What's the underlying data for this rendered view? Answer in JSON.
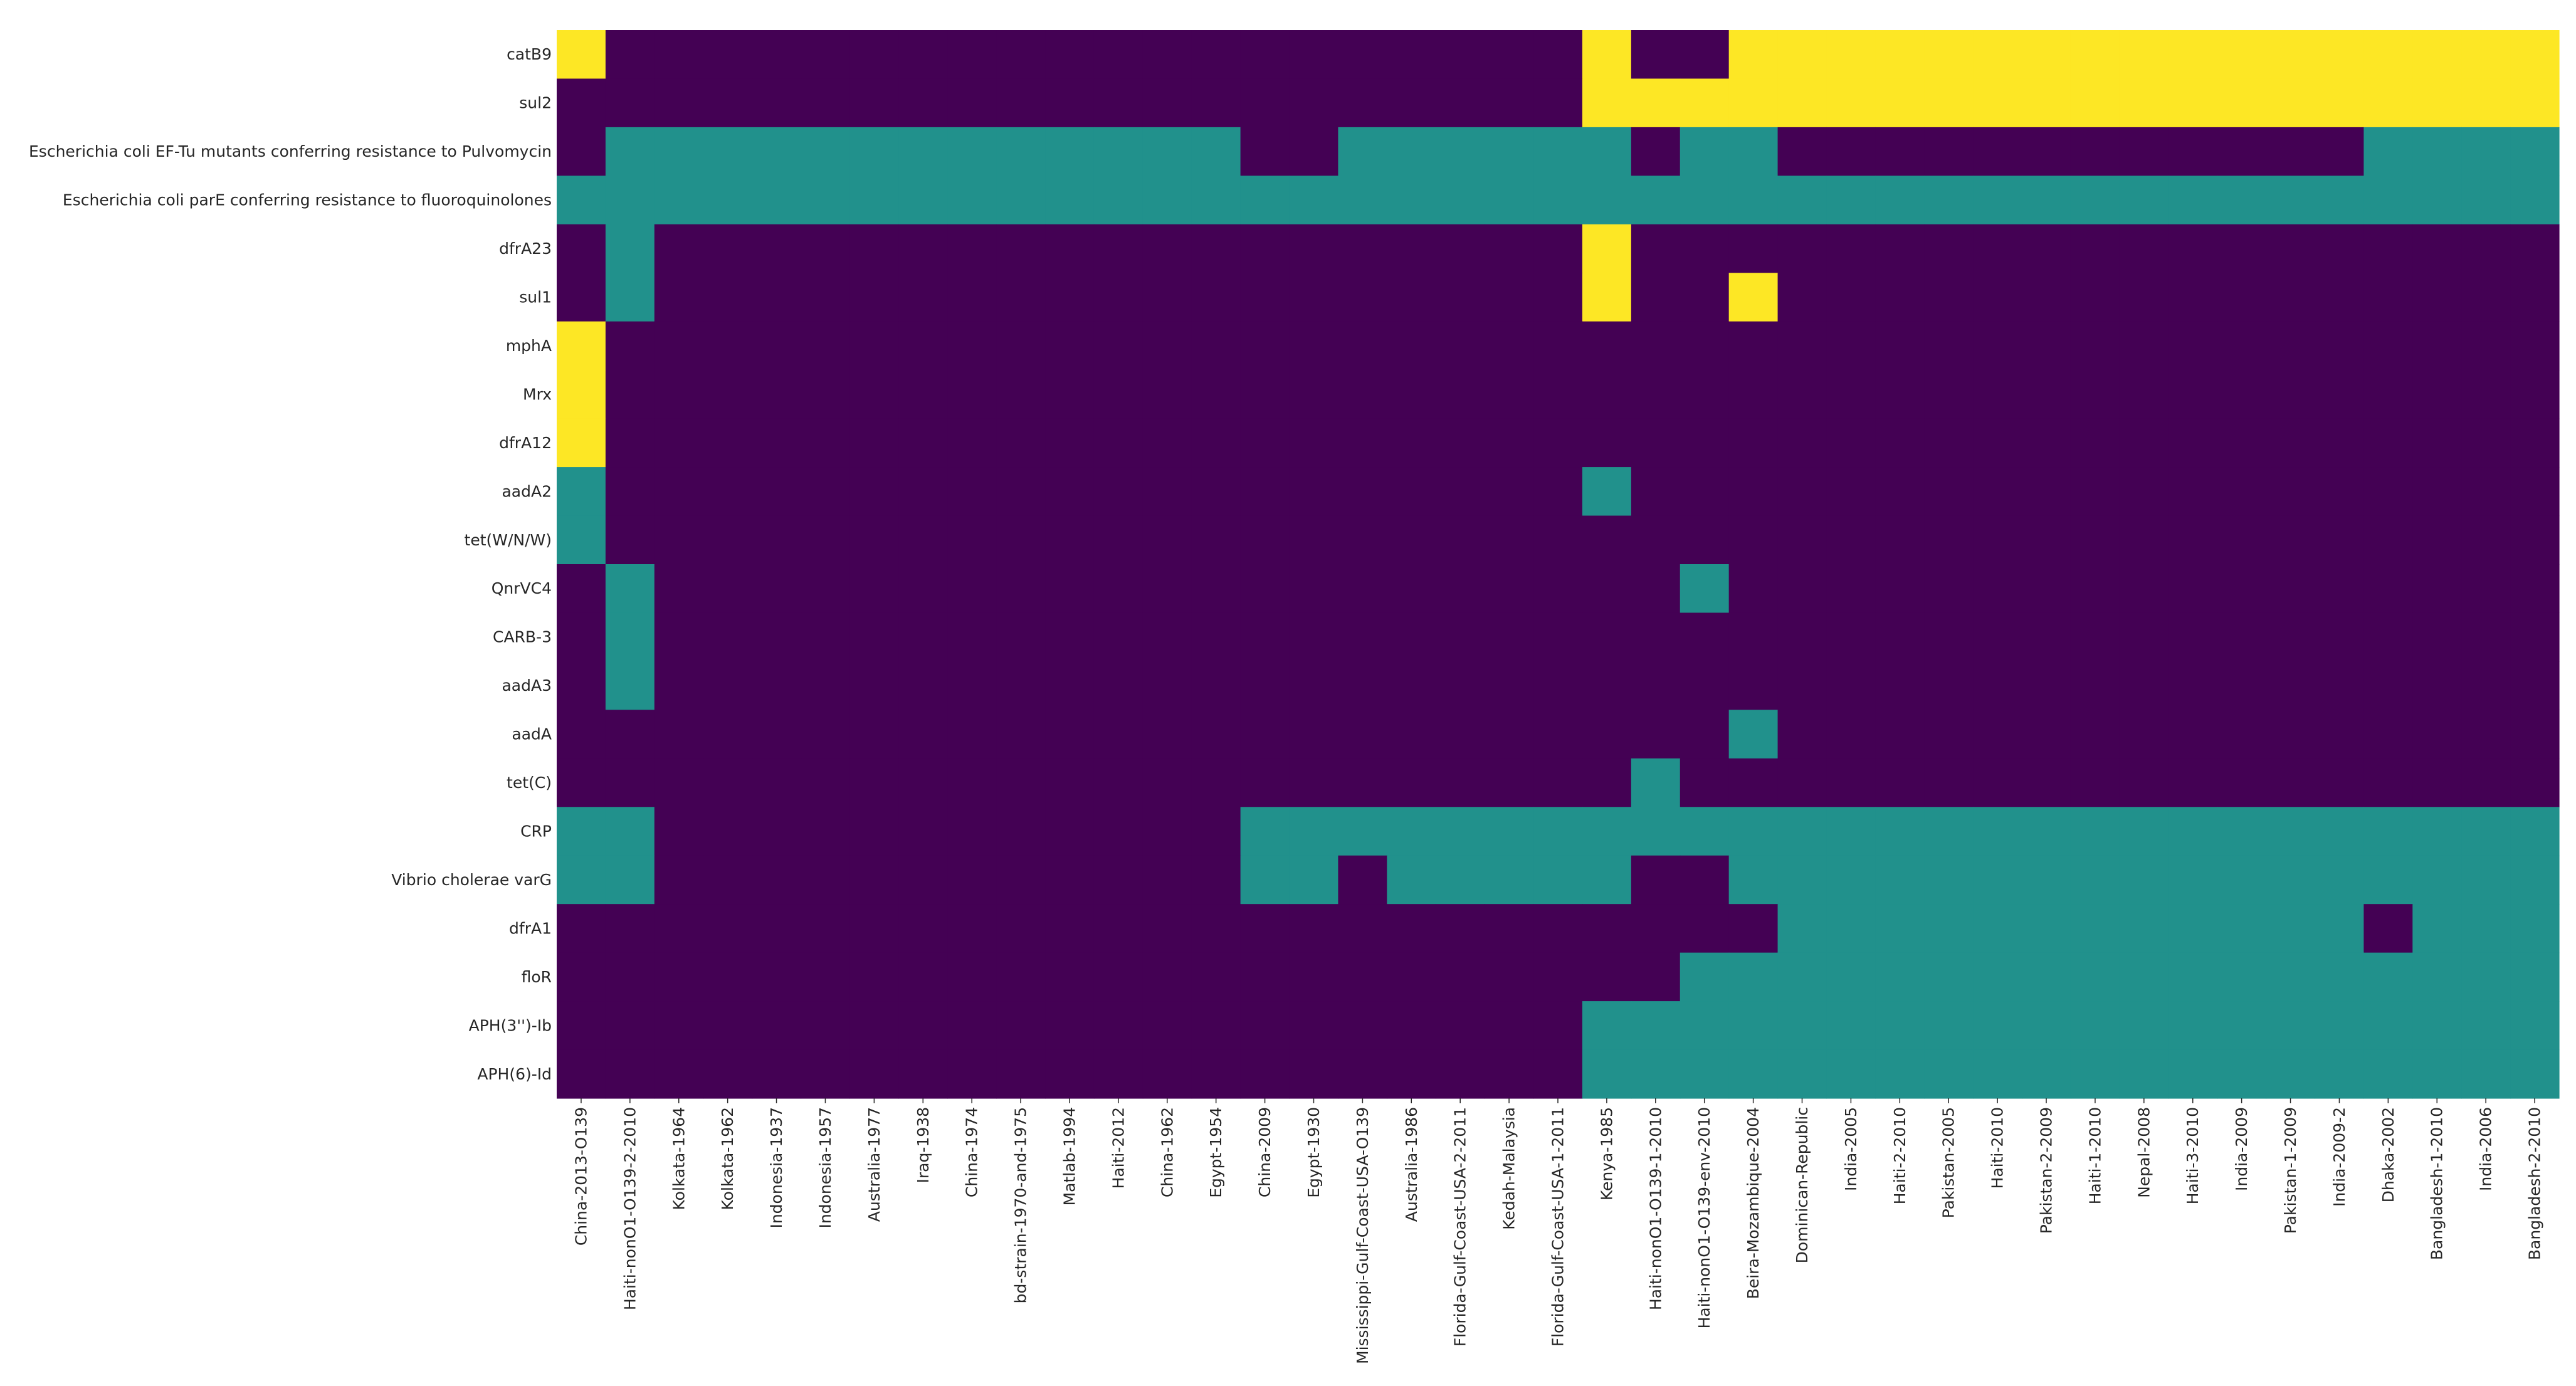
{
  "chart_data": {
    "type": "heatmap",
    "title": "",
    "xlabel": "",
    "ylabel": "",
    "grid": false,
    "colors": {
      "0": "#440154",
      "1": "#21918c",
      "2": "#fde725"
    },
    "rows": [
      "catB9",
      "sul2",
      "Escherichia coli EF-Tu mutants conferring resistance to Pulvomycin",
      "Escherichia coli parE conferring resistance to fluoroquinolones",
      "dfrA23",
      "sul1",
      "mphA",
      "Mrx",
      "dfrA12",
      "aadA2",
      "tet(W/N/W)",
      "QnrVC4",
      "CARB-3",
      "aadA3",
      "aadA",
      "tet(C)",
      "CRP",
      "Vibrio cholerae varG",
      "dfrA1",
      "floR",
      "APH(3'')-Ib",
      "APH(6)-Id"
    ],
    "columns": [
      "China-2013-O139",
      "Haiti-nonO1-O139-2-2010",
      "Kolkata-1964",
      "Kolkata-1962",
      "Indonesia-1937",
      "Indonesia-1957",
      "Australia-1977",
      "Iraq-1938",
      "China-1974",
      "bd-strain-1970-and-1975",
      "Matlab-1994",
      "Haiti-2012",
      "China-1962",
      "Egypt-1954",
      "China-2009",
      "Egypt-1930",
      "Mississippi-Gulf-Coast-USA-O139",
      "Australia-1986",
      "Florida-Gulf-Coast-USA-2-2011",
      "Kedah-Malaysia",
      "Florida-Gulf-Coast-USA-1-2011",
      "Kenya-1985",
      "Haiti-nonO1-O139-1-2010",
      "Haiti-nonO1-O139-env-2010",
      "Beira-Mozambique-2004",
      "Dominican-Republic",
      "India-2005",
      "Haiti-2-2010",
      "Pakistan-2005",
      "Haiti-2010",
      "Pakistan-2-2009",
      "Haiti-1-2010",
      "Nepal-2008",
      "Haiti-3-2010",
      "India-2009",
      "Pakistan-1-2009",
      "India-2009-2",
      "Dhaka-2002",
      "Bangladesh-1-2010",
      "India-2006",
      "Bangladesh-2-2010"
    ],
    "values": [
      [
        2,
        0,
        0,
        0,
        0,
        0,
        0,
        0,
        0,
        0,
        0,
        0,
        0,
        0,
        0,
        0,
        0,
        0,
        0,
        0,
        0,
        2,
        0,
        0,
        2,
        2,
        2,
        2,
        2,
        2,
        2,
        2,
        2,
        2,
        2,
        2,
        2,
        2,
        2,
        2,
        2
      ],
      [
        0,
        0,
        0,
        0,
        0,
        0,
        0,
        0,
        0,
        0,
        0,
        0,
        0,
        0,
        0,
        0,
        0,
        0,
        0,
        0,
        0,
        2,
        2,
        2,
        2,
        2,
        2,
        2,
        2,
        2,
        2,
        2,
        2,
        2,
        2,
        2,
        2,
        2,
        2,
        2,
        2
      ],
      [
        0,
        1,
        1,
        1,
        1,
        1,
        1,
        1,
        1,
        1,
        1,
        1,
        1,
        1,
        0,
        0,
        1,
        1,
        1,
        1,
        1,
        1,
        0,
        1,
        1,
        0,
        0,
        0,
        0,
        0,
        0,
        0,
        0,
        0,
        0,
        0,
        0,
        1,
        1,
        1,
        1
      ],
      [
        1,
        1,
        1,
        1,
        1,
        1,
        1,
        1,
        1,
        1,
        1,
        1,
        1,
        1,
        1,
        1,
        1,
        1,
        1,
        1,
        1,
        1,
        1,
        1,
        1,
        1,
        1,
        1,
        1,
        1,
        1,
        1,
        1,
        1,
        1,
        1,
        1,
        1,
        1,
        1,
        1
      ],
      [
        0,
        1,
        0,
        0,
        0,
        0,
        0,
        0,
        0,
        0,
        0,
        0,
        0,
        0,
        0,
        0,
        0,
        0,
        0,
        0,
        0,
        2,
        0,
        0,
        0,
        0,
        0,
        0,
        0,
        0,
        0,
        0,
        0,
        0,
        0,
        0,
        0,
        0,
        0,
        0,
        0
      ],
      [
        0,
        1,
        0,
        0,
        0,
        0,
        0,
        0,
        0,
        0,
        0,
        0,
        0,
        0,
        0,
        0,
        0,
        0,
        0,
        0,
        0,
        2,
        0,
        0,
        2,
        0,
        0,
        0,
        0,
        0,
        0,
        0,
        0,
        0,
        0,
        0,
        0,
        0,
        0,
        0,
        0
      ],
      [
        2,
        0,
        0,
        0,
        0,
        0,
        0,
        0,
        0,
        0,
        0,
        0,
        0,
        0,
        0,
        0,
        0,
        0,
        0,
        0,
        0,
        0,
        0,
        0,
        0,
        0,
        0,
        0,
        0,
        0,
        0,
        0,
        0,
        0,
        0,
        0,
        0,
        0,
        0,
        0,
        0
      ],
      [
        2,
        0,
        0,
        0,
        0,
        0,
        0,
        0,
        0,
        0,
        0,
        0,
        0,
        0,
        0,
        0,
        0,
        0,
        0,
        0,
        0,
        0,
        0,
        0,
        0,
        0,
        0,
        0,
        0,
        0,
        0,
        0,
        0,
        0,
        0,
        0,
        0,
        0,
        0,
        0,
        0
      ],
      [
        2,
        0,
        0,
        0,
        0,
        0,
        0,
        0,
        0,
        0,
        0,
        0,
        0,
        0,
        0,
        0,
        0,
        0,
        0,
        0,
        0,
        0,
        0,
        0,
        0,
        0,
        0,
        0,
        0,
        0,
        0,
        0,
        0,
        0,
        0,
        0,
        0,
        0,
        0,
        0,
        0
      ],
      [
        1,
        0,
        0,
        0,
        0,
        0,
        0,
        0,
        0,
        0,
        0,
        0,
        0,
        0,
        0,
        0,
        0,
        0,
        0,
        0,
        0,
        1,
        0,
        0,
        0,
        0,
        0,
        0,
        0,
        0,
        0,
        0,
        0,
        0,
        0,
        0,
        0,
        0,
        0,
        0,
        0
      ],
      [
        1,
        0,
        0,
        0,
        0,
        0,
        0,
        0,
        0,
        0,
        0,
        0,
        0,
        0,
        0,
        0,
        0,
        0,
        0,
        0,
        0,
        0,
        0,
        0,
        0,
        0,
        0,
        0,
        0,
        0,
        0,
        0,
        0,
        0,
        0,
        0,
        0,
        0,
        0,
        0,
        0
      ],
      [
        0,
        1,
        0,
        0,
        0,
        0,
        0,
        0,
        0,
        0,
        0,
        0,
        0,
        0,
        0,
        0,
        0,
        0,
        0,
        0,
        0,
        0,
        0,
        1,
        0,
        0,
        0,
        0,
        0,
        0,
        0,
        0,
        0,
        0,
        0,
        0,
        0,
        0,
        0,
        0,
        0
      ],
      [
        0,
        1,
        0,
        0,
        0,
        0,
        0,
        0,
        0,
        0,
        0,
        0,
        0,
        0,
        0,
        0,
        0,
        0,
        0,
        0,
        0,
        0,
        0,
        0,
        0,
        0,
        0,
        0,
        0,
        0,
        0,
        0,
        0,
        0,
        0,
        0,
        0,
        0,
        0,
        0,
        0
      ],
      [
        0,
        1,
        0,
        0,
        0,
        0,
        0,
        0,
        0,
        0,
        0,
        0,
        0,
        0,
        0,
        0,
        0,
        0,
        0,
        0,
        0,
        0,
        0,
        0,
        0,
        0,
        0,
        0,
        0,
        0,
        0,
        0,
        0,
        0,
        0,
        0,
        0,
        0,
        0,
        0,
        0
      ],
      [
        0,
        0,
        0,
        0,
        0,
        0,
        0,
        0,
        0,
        0,
        0,
        0,
        0,
        0,
        0,
        0,
        0,
        0,
        0,
        0,
        0,
        0,
        0,
        0,
        1,
        0,
        0,
        0,
        0,
        0,
        0,
        0,
        0,
        0,
        0,
        0,
        0,
        0,
        0,
        0,
        0
      ],
      [
        0,
        0,
        0,
        0,
        0,
        0,
        0,
        0,
        0,
        0,
        0,
        0,
        0,
        0,
        0,
        0,
        0,
        0,
        0,
        0,
        0,
        0,
        1,
        0,
        0,
        0,
        0,
        0,
        0,
        0,
        0,
        0,
        0,
        0,
        0,
        0,
        0,
        0,
        0,
        0,
        0
      ],
      [
        1,
        1,
        0,
        0,
        0,
        0,
        0,
        0,
        0,
        0,
        0,
        0,
        0,
        0,
        1,
        1,
        1,
        1,
        1,
        1,
        1,
        1,
        1,
        1,
        1,
        1,
        1,
        1,
        1,
        1,
        1,
        1,
        1,
        1,
        1,
        1,
        1,
        1,
        1,
        1,
        1
      ],
      [
        1,
        1,
        0,
        0,
        0,
        0,
        0,
        0,
        0,
        0,
        0,
        0,
        0,
        0,
        1,
        1,
        0,
        1,
        1,
        1,
        1,
        1,
        0,
        0,
        1,
        1,
        1,
        1,
        1,
        1,
        1,
        1,
        1,
        1,
        1,
        1,
        1,
        1,
        1,
        1,
        1
      ],
      [
        0,
        0,
        0,
        0,
        0,
        0,
        0,
        0,
        0,
        0,
        0,
        0,
        0,
        0,
        0,
        0,
        0,
        0,
        0,
        0,
        0,
        0,
        0,
        0,
        0,
        1,
        1,
        1,
        1,
        1,
        1,
        1,
        1,
        1,
        1,
        1,
        1,
        0,
        1,
        1,
        1
      ],
      [
        0,
        0,
        0,
        0,
        0,
        0,
        0,
        0,
        0,
        0,
        0,
        0,
        0,
        0,
        0,
        0,
        0,
        0,
        0,
        0,
        0,
        0,
        0,
        1,
        1,
        1,
        1,
        1,
        1,
        1,
        1,
        1,
        1,
        1,
        1,
        1,
        1,
        1,
        1,
        1,
        1
      ],
      [
        0,
        0,
        0,
        0,
        0,
        0,
        0,
        0,
        0,
        0,
        0,
        0,
        0,
        0,
        0,
        0,
        0,
        0,
        0,
        0,
        0,
        1,
        1,
        1,
        1,
        1,
        1,
        1,
        1,
        1,
        1,
        1,
        1,
        1,
        1,
        1,
        1,
        1,
        1,
        1,
        1
      ],
      [
        0,
        0,
        0,
        0,
        0,
        0,
        0,
        0,
        0,
        0,
        0,
        0,
        0,
        0,
        0,
        0,
        0,
        0,
        0,
        0,
        0,
        1,
        1,
        1,
        1,
        1,
        1,
        1,
        1,
        1,
        1,
        1,
        1,
        1,
        1,
        1,
        1,
        1,
        1,
        1,
        1
      ]
    ]
  }
}
